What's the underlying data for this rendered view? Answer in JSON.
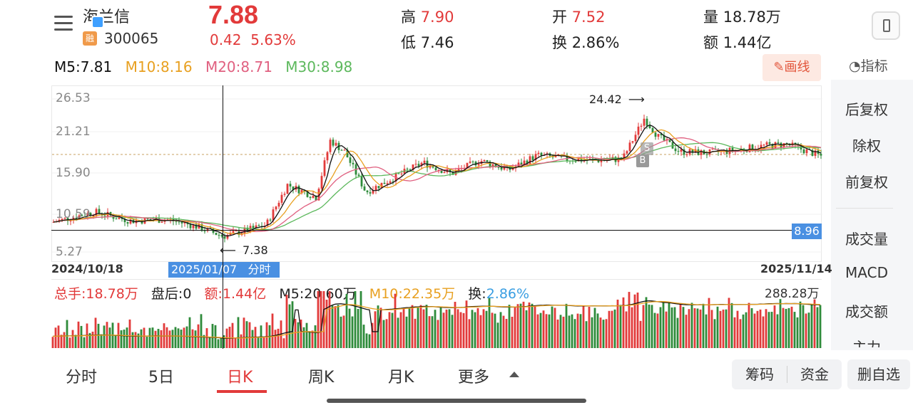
{
  "header": {
    "name": "海兰信",
    "code": "300065",
    "rong": "融",
    "price": "7.88",
    "change": "0.42",
    "change_pct": "5.63%",
    "high_label": "高",
    "high": "7.90",
    "low_label": "低",
    "low": "7.46",
    "open_label": "开",
    "open": "7.52",
    "turnover_label": "换",
    "turnover": "2.86%",
    "volume_label": "量",
    "volume": "18.78万",
    "amount_label": "额",
    "amount": "1.44亿"
  },
  "ma": {
    "m5": "M5:7.81",
    "m10": "M10:8.16",
    "m20": "M20:8.71",
    "m30": "M30:8.98"
  },
  "toolbar": {
    "draw": "✎画线",
    "indicator": "◔指标"
  },
  "side": [
    "后复权",
    "除权",
    "前复权",
    "成交量",
    "MACD",
    "成交额",
    "主力"
  ],
  "chart": {
    "y_ticks": [
      "26.53",
      "21.21",
      "15.90",
      "10.59",
      "5.27"
    ],
    "start_date": "2024/10/18",
    "end_date": "2025/11/14",
    "cursor_date": "2025/01/07",
    "cursor_link": "分时 >",
    "high_mark": "24.42",
    "low_mark": "7.38",
    "cursor_price": "8.96",
    "marker_b": "B",
    "marker_s": "S"
  },
  "volume": {
    "total": "总手:18.78万",
    "after": "盘后:0",
    "amount": "额:1.44亿",
    "m5": "M5:20.60万",
    "m10": "M10:22.35万",
    "turnover_label": "换:",
    "turnover": "2.86%",
    "max": "288.28万"
  },
  "tabs": [
    "分时",
    "5日",
    "日K",
    "周K",
    "月K",
    "更多"
  ],
  "buttons": {
    "chips": "筹码",
    "funds": "资金",
    "delete": "删自选"
  },
  "colors": {
    "up": "#e23a3a",
    "down": "#2e8b3a",
    "m5": "#111111",
    "m10": "#e8a020",
    "m20": "#e06080",
    "m30": "#5cb85c"
  }
}
